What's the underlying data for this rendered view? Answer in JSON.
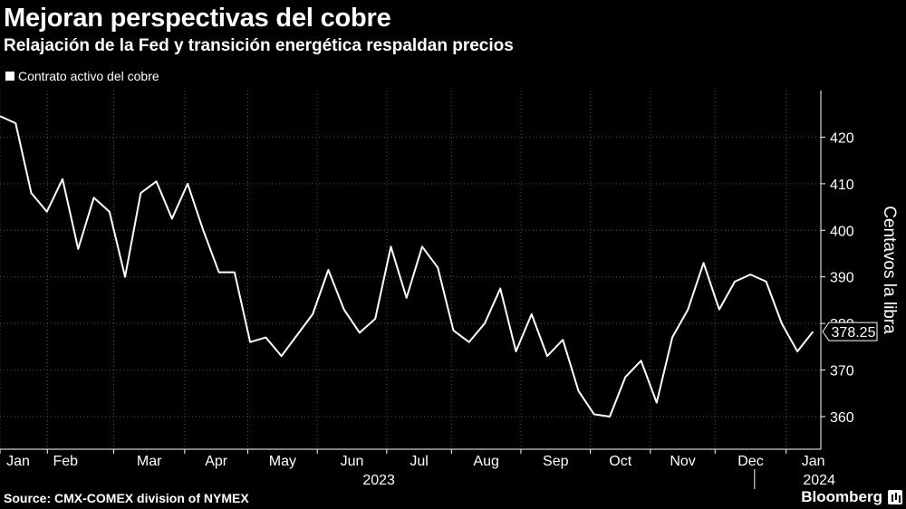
{
  "header": {
    "title": "Mejoran perspectivas del cobre",
    "subtitle": "Relajación de la Fed y transición energética respaldan precios"
  },
  "legend": {
    "label": "Contrato activo del cobre"
  },
  "footer": {
    "source": "Source: CMX-COMEX division of NYMEX",
    "brand": "Bloomberg"
  },
  "colors": {
    "background": "#000000",
    "line": "#ffffff",
    "grid": "#555555"
  },
  "chart_data": {
    "type": "line",
    "ylabel": "Centavos la libra",
    "ylim": [
      353,
      430
    ],
    "yticks": [
      360,
      370,
      380,
      390,
      400,
      410,
      420
    ],
    "y_axis_side": "right",
    "xlim": [
      0,
      52
    ],
    "month_ticks": [
      {
        "pos": 0,
        "label": "Jan"
      },
      {
        "pos": 3,
        "label": "Feb"
      },
      {
        "pos": 7.2,
        "label": "Mar"
      },
      {
        "pos": 11.7,
        "label": "Apr"
      },
      {
        "pos": 15.7,
        "label": "May"
      },
      {
        "pos": 20.1,
        "label": "Jun"
      },
      {
        "pos": 24.5,
        "label": "Jul"
      },
      {
        "pos": 28.6,
        "label": "Aug"
      },
      {
        "pos": 33,
        "label": "Sep"
      },
      {
        "pos": 37.4,
        "label": "Oct"
      },
      {
        "pos": 41.2,
        "label": "Nov"
      },
      {
        "pos": 45.3,
        "label": "Dec"
      },
      {
        "pos": 49.8,
        "label": "Jan"
      }
    ],
    "year_labels": [
      {
        "pos": 24,
        "label": "2023"
      },
      {
        "pos": 49.6,
        "label": "2024"
      }
    ],
    "year_divider_pos": 47.8,
    "last_value_label": "378.25",
    "series": [
      {
        "values": [
          424.5,
          423,
          408,
          404,
          411,
          396,
          407,
          404,
          390,
          408,
          410.5,
          402.5,
          410,
          400,
          391,
          391,
          376,
          377,
          373,
          377.5,
          382,
          391.5,
          383,
          378,
          381,
          396.5,
          385.5,
          396.5,
          392,
          378.5,
          376,
          380,
          387.5,
          374,
          382,
          373,
          376.5,
          365.5,
          360.5,
          360,
          368.5,
          372,
          363,
          377,
          383,
          393,
          383,
          389,
          390.5,
          389,
          380,
          374,
          378.25
        ]
      }
    ]
  }
}
